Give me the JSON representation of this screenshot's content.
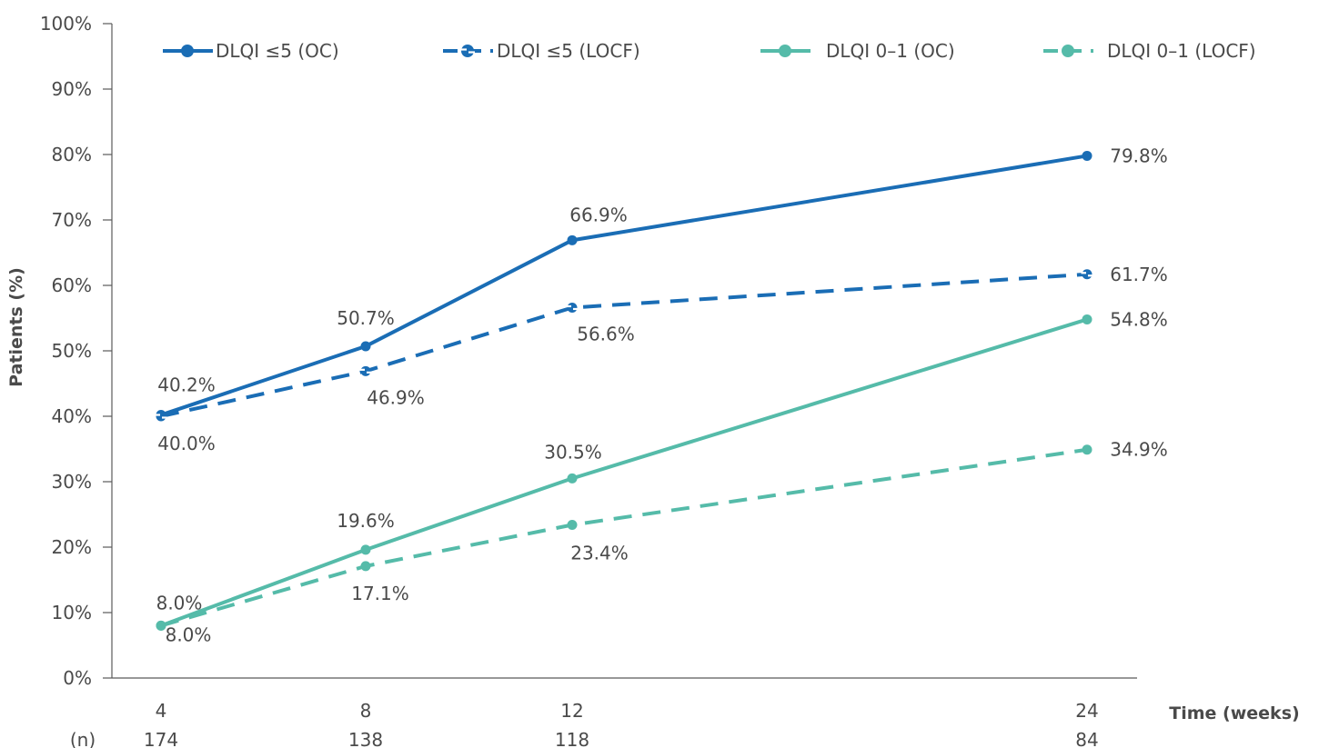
{
  "chart_data": {
    "type": "line",
    "ylabel": "Patients (%)",
    "xlabel": "Time (weeks)",
    "n_label": "(n)",
    "ylim": [
      0,
      100
    ],
    "y_ticks": [
      {
        "value": 0,
        "label": "0%"
      },
      {
        "value": 10,
        "label": "10%"
      },
      {
        "value": 20,
        "label": "20%"
      },
      {
        "value": 30,
        "label": "30%"
      },
      {
        "value": 40,
        "label": "40%"
      },
      {
        "value": 50,
        "label": "50%"
      },
      {
        "value": 60,
        "label": "60%"
      },
      {
        "value": 70,
        "label": "70%"
      },
      {
        "value": 80,
        "label": "80%"
      },
      {
        "value": 90,
        "label": "90%"
      },
      {
        "value": 100,
        "label": "100%"
      }
    ],
    "x": [
      4,
      8,
      12,
      24
    ],
    "x_labels": [
      "4",
      "8",
      "12",
      "24"
    ],
    "n_values": [
      "174",
      "138",
      "118",
      "84"
    ],
    "grid": false,
    "legend_position": "top",
    "series": [
      {
        "name": "DLQI ≤5 (OC)",
        "values": [
          40.2,
          50.7,
          66.9,
          79.8
        ],
        "labels": [
          "40.2%",
          "50.7%",
          "66.9%",
          "79.8%"
        ],
        "color": "#1a6db5",
        "dashed": false,
        "marker": "circle"
      },
      {
        "name": "DLQI ≤5 (LOCF)",
        "values": [
          40.0,
          46.9,
          56.6,
          61.7
        ],
        "labels": [
          "40.0%",
          "46.9%",
          "56.6%",
          "61.7%"
        ],
        "color": "#1a6db5",
        "dashed": true,
        "marker": "circle-notched"
      },
      {
        "name": "DLQI 0–1 (OC)",
        "values": [
          8.0,
          19.6,
          30.5,
          54.8
        ],
        "labels": [
          "8.0%",
          "19.6%",
          "30.5%",
          "54.8%"
        ],
        "color": "#55bba9",
        "dashed": false,
        "marker": "circle"
      },
      {
        "name": "DLQI 0–1 (LOCF)",
        "values": [
          8.0,
          17.1,
          23.4,
          34.9
        ],
        "labels": [
          "8.0%",
          "17.1%",
          "23.4%",
          "34.9%"
        ],
        "color": "#55bba9",
        "dashed": true,
        "marker": "circle"
      }
    ]
  }
}
